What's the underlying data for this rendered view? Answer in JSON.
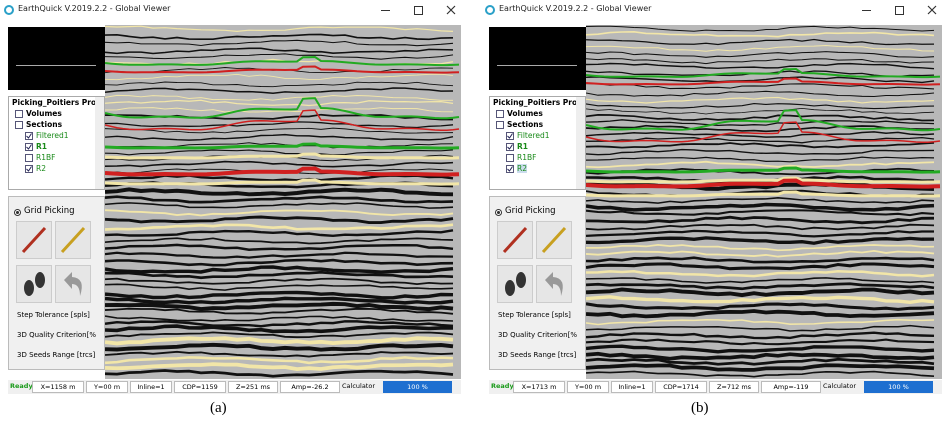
{
  "panels": [
    {
      "window_title": "EarthQuick V.2019.2.2 - Global Viewer",
      "tree": {
        "project": "Picking_Poitiers Pro",
        "items": [
          {
            "label": "Volumes",
            "checked": false
          },
          {
            "label": "Sections",
            "checked": false
          },
          {
            "label": "Filtered1",
            "checked": true
          },
          {
            "label": "R1",
            "checked": true
          },
          {
            "label": "R1BF",
            "checked": false
          },
          {
            "label": "R2",
            "checked": true
          }
        ]
      },
      "tool_title": "Grid Picking",
      "params": [
        "Step Tolerance [spls]",
        "3D Quality Criterion[%",
        "3D Seeds Range [trcs]"
      ],
      "status": {
        "ready": "Ready",
        "fields": [
          "X=1158 m",
          "Y=00 m",
          "Inline=1",
          "CDP=1159",
          "Z=251 ms",
          "Amp=-26.2"
        ],
        "calculator": "Calculator",
        "progress": "100 %"
      },
      "caption": "(a)"
    },
    {
      "window_title": "EarthQuick V.2019.2.2 - Global Viewer",
      "tree": {
        "project": "Picking_Poitiers Pro",
        "items": [
          {
            "label": "Volumes",
            "checked": false
          },
          {
            "label": "Sections",
            "checked": false
          },
          {
            "label": "Filtered1",
            "checked": true
          },
          {
            "label": "R1",
            "checked": true
          },
          {
            "label": "R1BF",
            "checked": false
          },
          {
            "label": "R2",
            "checked": true
          }
        ]
      },
      "tool_title": "Grid Picking",
      "params": [
        "Step Tolerance [spls]",
        "3D Quality Criterion[%",
        "3D Seeds Range [trcs]"
      ],
      "status": {
        "ready": "Ready",
        "fields": [
          "X=1713 m",
          "Y=00 m",
          "Inline=1",
          "CDP=1714",
          "Z=712 ms",
          "Amp=-119"
        ],
        "calculator": "Calculator",
        "progress": "100 %"
      },
      "caption": "(b)"
    }
  ]
}
